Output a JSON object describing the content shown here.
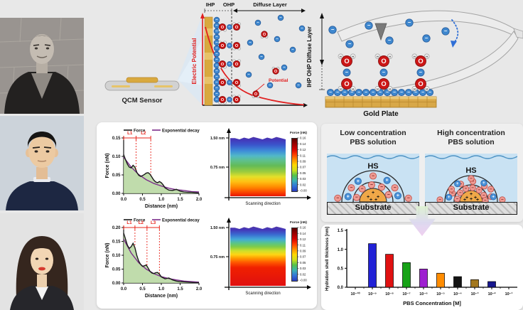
{
  "symbols": {
    "plus": "+",
    "minus": "−",
    "oxygen": "O",
    "hydrogen": "H"
  },
  "edl_panel": {
    "ihp_label": "IHP",
    "ohp_label": "OHP",
    "diffuse_label": "Diffuse Layer",
    "electric_potential_label": "Electric Potential",
    "potential_label": "Potential",
    "qcm_label": "QCM Sensor"
  },
  "afm_panel": {
    "side_label": "IHP  OHP  Diffuse Layer",
    "gold_plate_label": "Gold Plate"
  },
  "pbs_panel": {
    "low_title_line1": "Low concentration",
    "low_title_line2": "PBS solution",
    "high_title_line1": "High concentration",
    "high_title_line2": "PBS solution",
    "hs_label": "HS",
    "substrate_label": "Substrate"
  },
  "chart_data": [
    {
      "id": "force_distance_1",
      "type": "line",
      "xlabel": "Distance (nm)",
      "ylabel": "Force (nN)",
      "xlim": [
        0,
        2
      ],
      "ylim": [
        0,
        0.15
      ],
      "xticks": [
        "0.0",
        "0.5",
        "1.0",
        "1.5",
        "2.0"
      ],
      "yticks": [
        "0.00",
        "0.05",
        "0.10",
        "0.15"
      ],
      "legend": [
        {
          "label": "Force",
          "color": "#1a1a1a"
        },
        {
          "label": "Exponential decay",
          "color": "#7b2d8b"
        }
      ],
      "markers": {
        "labels": [
          "L1",
          "L2"
        ],
        "x": [
          0.33,
          0.72
        ],
        "color": "#e8231a"
      },
      "series": [
        {
          "name": "Force",
          "color": "#1a1a1a",
          "fill": "#b5d69e",
          "x": [
            0,
            0.05,
            0.1,
            0.15,
            0.2,
            0.25,
            0.3,
            0.35,
            0.4,
            0.45,
            0.5,
            0.55,
            0.6,
            0.65,
            0.7,
            0.75,
            0.8,
            0.85,
            0.9,
            0.95,
            1,
            1.05,
            1.1,
            1.2,
            1.3,
            1.4,
            1.5,
            1.6,
            1.7,
            1.8,
            1.9,
            2
          ],
          "y": [
            0.105,
            0.091,
            0.079,
            0.071,
            0.069,
            0.076,
            0.071,
            0.057,
            0.049,
            0.046,
            0.048,
            0.051,
            0.055,
            0.056,
            0.052,
            0.044,
            0.036,
            0.031,
            0.029,
            0.032,
            0.029,
            0.023,
            0.015,
            0.009,
            0.008,
            0.011,
            0.006,
            0.004,
            0.003,
            0.003,
            0.002,
            0.001
          ]
        },
        {
          "name": "Exponential decay",
          "color": "#7b2d8b",
          "x": [
            0,
            0.2,
            0.4,
            0.6,
            0.8,
            1,
            1.2,
            1.4,
            1.6,
            1.8,
            2
          ],
          "y": [
            0.098,
            0.071,
            0.051,
            0.037,
            0.027,
            0.02,
            0.014,
            0.01,
            0.008,
            0.005,
            0.004
          ]
        }
      ]
    },
    {
      "id": "force_distance_2",
      "type": "line",
      "xlabel": "Distance (nm)",
      "ylabel": "Force (nN)",
      "xlim": [
        0,
        2
      ],
      "ylim": [
        0,
        0.2
      ],
      "xticks": [
        "0.0",
        "0.5",
        "1.0",
        "1.5",
        "2.0"
      ],
      "yticks": [
        "0.00",
        "0.05",
        "0.10",
        "0.15",
        "0.20"
      ],
      "legend": [
        {
          "label": "Force",
          "color": "#1a1a1a"
        },
        {
          "label": "Exponential decay",
          "color": "#7b2d8b"
        }
      ],
      "markers": {
        "labels": [
          "L1",
          "L2",
          "L3"
        ],
        "x": [
          0.3,
          0.62,
          0.95
        ],
        "color": "#e8231a"
      },
      "series": [
        {
          "name": "Force",
          "color": "#1a1a1a",
          "fill": "#b5d69e",
          "x": [
            0,
            0.05,
            0.1,
            0.15,
            0.2,
            0.25,
            0.3,
            0.35,
            0.4,
            0.45,
            0.5,
            0.55,
            0.6,
            0.65,
            0.7,
            0.75,
            0.8,
            0.85,
            0.9,
            0.95,
            1,
            1.1,
            1.2,
            1.3,
            1.4,
            1.5,
            1.6,
            1.7,
            1.8,
            1.9,
            2
          ],
          "y": [
            0.18,
            0.158,
            0.136,
            0.125,
            0.131,
            0.143,
            0.127,
            0.099,
            0.079,
            0.067,
            0.06,
            0.062,
            0.065,
            0.054,
            0.042,
            0.036,
            0.034,
            0.037,
            0.038,
            0.032,
            0.022,
            0.015,
            0.018,
            0.011,
            0.007,
            0.005,
            0.004,
            0.003,
            0.002,
            0.001,
            0.001
          ]
        },
        {
          "name": "Exponential decay",
          "color": "#7b2d8b",
          "x": [
            0,
            0.2,
            0.4,
            0.6,
            0.8,
            1,
            1.2,
            1.4,
            1.6,
            1.8,
            2
          ],
          "y": [
            0.158,
            0.108,
            0.073,
            0.05,
            0.034,
            0.023,
            0.016,
            0.011,
            0.007,
            0.005,
            0.003
          ]
        }
      ]
    },
    {
      "id": "force_map_1",
      "type": "heatmap",
      "xlabel": "Scanning direction",
      "yticks": [
        "1.50 nm",
        "0.75 nm"
      ],
      "colorbar": {
        "title": "Force (nN)",
        "ticks": [
          "0.16",
          "0.14",
          "0.12",
          "0.11",
          "0.09",
          "0.07",
          "0.05",
          "0.03",
          "0.02",
          "-0.00"
        ],
        "stops": [
          "#5e0000",
          "#9a0000",
          "#d40000",
          "#ff3c00",
          "#ff9000",
          "#ffd800",
          "#cfe01c",
          "#55c24a",
          "#3cb4b4",
          "#3474d8",
          "#2a3cbe"
        ]
      },
      "gradient": [
        {
          "pos": 0,
          "color": "#5b3ba0"
        },
        {
          "pos": 0.07,
          "color": "#4436b8"
        },
        {
          "pos": 0.16,
          "color": "#3a55cc"
        },
        {
          "pos": 0.26,
          "color": "#3e8ed8"
        },
        {
          "pos": 0.34,
          "color": "#52b8c8"
        },
        {
          "pos": 0.42,
          "color": "#5fc08a"
        },
        {
          "pos": 0.5,
          "color": "#63bb57"
        },
        {
          "pos": 0.6,
          "color": "#9ccc3e"
        },
        {
          "pos": 0.68,
          "color": "#e3e02a"
        },
        {
          "pos": 0.76,
          "color": "#ffc113"
        },
        {
          "pos": 0.85,
          "color": "#ff8a00"
        },
        {
          "pos": 0.93,
          "color": "#fb4a00"
        },
        {
          "pos": 1,
          "color": "#e81600"
        }
      ]
    },
    {
      "id": "force_map_2",
      "type": "heatmap",
      "xlabel": "Scanning direction",
      "yticks": [
        "1.50 nm",
        "0.75 nm"
      ],
      "colorbar": {
        "title": "Force (nN)",
        "ticks": [
          "0.16",
          "0.14",
          "0.12",
          "0.11",
          "0.09",
          "0.07",
          "0.05",
          "0.03",
          "0.02",
          "-0.00"
        ],
        "stops": [
          "#5e0000",
          "#9a0000",
          "#d40000",
          "#ff3c00",
          "#ff9000",
          "#ffd800",
          "#cfe01c",
          "#55c24a",
          "#3cb4b4",
          "#3474d8",
          "#2a3cbe"
        ]
      },
      "gradient": [
        {
          "pos": 0,
          "color": "#5b3ba0"
        },
        {
          "pos": 0.08,
          "color": "#4436b8"
        },
        {
          "pos": 0.16,
          "color": "#3a6ad0"
        },
        {
          "pos": 0.24,
          "color": "#44aad8"
        },
        {
          "pos": 0.3,
          "color": "#58c48a"
        },
        {
          "pos": 0.36,
          "color": "#7ecb4a"
        },
        {
          "pos": 0.43,
          "color": "#cfe02a"
        },
        {
          "pos": 0.49,
          "color": "#ffd413"
        },
        {
          "pos": 0.55,
          "color": "#ff9800"
        },
        {
          "pos": 0.62,
          "color": "#ff5500"
        },
        {
          "pos": 0.7,
          "color": "#f02000"
        },
        {
          "pos": 1,
          "color": "#e01010"
        }
      ]
    },
    {
      "id": "hydration_shell_bar",
      "type": "bar",
      "xlabel": "PBS Concentration [M]",
      "ylabel": "Hydration shell thickness [nm]",
      "ylim": [
        0,
        1.5
      ],
      "yticks": [
        "0.0",
        "0.5",
        "1.0",
        "1.5"
      ],
      "categories": [
        "10⁻¹⁰",
        "10⁻⁹",
        "10⁻⁸",
        "10⁻⁷",
        "10⁻⁶",
        "10⁻⁵",
        "10⁻⁴",
        "10⁻³",
        "10⁻²",
        "10⁻¹"
      ],
      "bars": [
        {
          "category": "10⁻⁹",
          "value": 1.15,
          "color": "#2121d6"
        },
        {
          "category": "10⁻⁸",
          "value": 0.87,
          "color": "#e01111"
        },
        {
          "category": "10⁻⁷",
          "value": 0.65,
          "color": "#17a317"
        },
        {
          "category": "10⁻⁶",
          "value": 0.48,
          "color": "#9e1fd0"
        },
        {
          "category": "10⁻⁵",
          "value": 0.37,
          "color": "#ff8c00"
        },
        {
          "category": "10⁻⁴",
          "value": 0.28,
          "color": "#141414"
        },
        {
          "category": "10⁻³",
          "value": 0.2,
          "color": "#a3781f"
        },
        {
          "category": "10⁻²",
          "value": 0.15,
          "color": "#17178f"
        }
      ]
    }
  ]
}
